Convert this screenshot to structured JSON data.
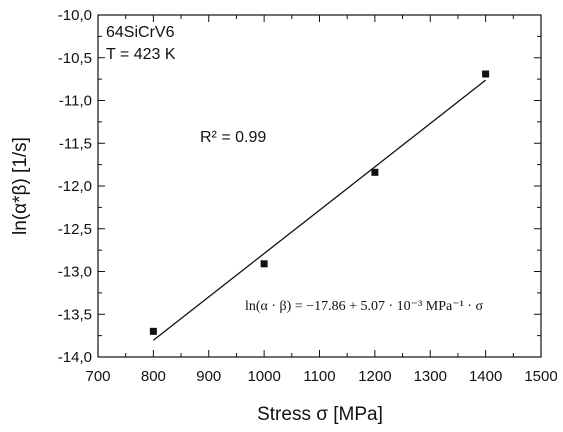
{
  "chart_data": {
    "type": "scatter",
    "xlabel": "Stress σ [MPa]",
    "ylabel": "ln(α*β) [1/s]",
    "xlim": [
      700,
      1500
    ],
    "ylim": [
      -14.0,
      -10.0
    ],
    "x_ticks": [
      "700",
      "800",
      "900",
      "1000",
      "1100",
      "1200",
      "1300",
      "1400",
      "1500"
    ],
    "y_ticks": [
      "-10,0",
      "-10,5",
      "-11,0",
      "-11,5",
      "-12,0",
      "-12,5",
      "-13,0",
      "-13,5",
      "-14,0"
    ],
    "points": [
      {
        "x": 800,
        "y": -13.7
      },
      {
        "x": 1000,
        "y": -12.91
      },
      {
        "x": 1200,
        "y": -11.84
      },
      {
        "x": 1400,
        "y": -10.69
      }
    ],
    "fit": {
      "x_start": 800,
      "x_end": 1400,
      "intercept": -17.86,
      "slope": 0.00507
    },
    "annotations": {
      "material": "64SiCrV6",
      "temperature": "T = 423 K",
      "r_squared": "R² = 0.99",
      "equation": "ln(α · β) = −17.86 + 5.07 · 10⁻³ MPa⁻¹ · σ"
    }
  }
}
